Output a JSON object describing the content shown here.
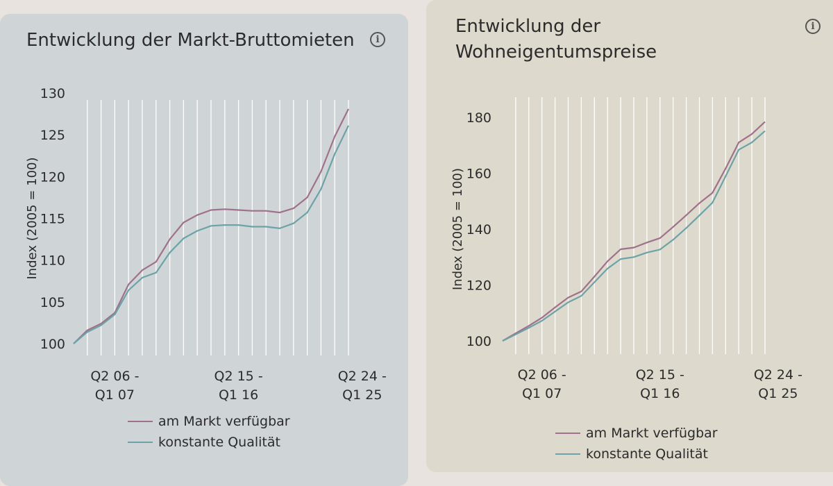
{
  "chart_data": [
    {
      "type": "line",
      "title": "Entwicklung der Markt-Bruttomieten",
      "ylabel": "Index (2005 = 100)",
      "xlabel": "",
      "ylim": [
        100,
        130
      ],
      "yticks": [
        100,
        105,
        110,
        115,
        120,
        125,
        130
      ],
      "x_tick_labels": [
        {
          "index": 3,
          "lines": [
            "Q2 06 -",
            "Q1 07"
          ]
        },
        {
          "index": 12,
          "lines": [
            "Q2 15 -",
            "Q1 16"
          ]
        },
        {
          "index": 21,
          "lines": [
            "Q2 24 -",
            "Q1 25"
          ]
        }
      ],
      "grid": "vertical",
      "legend": "bottom",
      "series": [
        {
          "name": "am Markt verfügbar",
          "color": "#a0708c",
          "values": [
            100,
            101.6,
            102.4,
            103.7,
            107.1,
            108.8,
            109.8,
            112.5,
            114.5,
            115.4,
            116.0,
            116.1,
            116.0,
            115.9,
            115.9,
            115.7,
            116.2,
            117.5,
            120.6,
            124.8,
            128.1
          ]
        },
        {
          "name": "konstante Qualität",
          "color": "#6aa3a8",
          "values": [
            100,
            101.4,
            102.2,
            103.5,
            106.4,
            107.9,
            108.5,
            110.9,
            112.6,
            113.5,
            114.1,
            114.2,
            114.2,
            114.0,
            114.0,
            113.8,
            114.4,
            115.7,
            118.5,
            122.7,
            126.1
          ]
        }
      ]
    },
    {
      "type": "line",
      "title": "Entwicklung der Wohneigentumspreise",
      "ylabel": "Index (2005 = 100)",
      "xlabel": "",
      "ylim": [
        100,
        180
      ],
      "yticks": [
        100,
        120,
        140,
        160,
        180
      ],
      "x_tick_labels": [
        {
          "index": 3,
          "lines": [
            "Q2 06 -",
            "Q1 07"
          ]
        },
        {
          "index": 12,
          "lines": [
            "Q2 15 -",
            "Q1 16"
          ]
        },
        {
          "index": 21,
          "lines": [
            "Q2 24 -",
            "Q1 25"
          ]
        }
      ],
      "grid": "vertical",
      "legend": "bottom",
      "series": [
        {
          "name": "am Markt verfügbar",
          "color": "#a0708c",
          "values": [
            100,
            102.7,
            105.4,
            108.3,
            112.0,
            115.5,
            117.7,
            123.0,
            128.5,
            132.8,
            133.4,
            135.2,
            136.8,
            140.8,
            145.0,
            149.3,
            153.0,
            161.7,
            171.0,
            174.0,
            178.4
          ]
        },
        {
          "name": "konstante Qualität",
          "color": "#6aa3a8",
          "values": [
            100,
            102.3,
            104.7,
            107.2,
            110.5,
            113.8,
            116.1,
            121.0,
            125.9,
            129.3,
            130.0,
            131.6,
            132.7,
            136.2,
            140.4,
            144.9,
            149.5,
            158.9,
            168.4,
            171.0,
            175.1
          ]
        }
      ]
    }
  ]
}
